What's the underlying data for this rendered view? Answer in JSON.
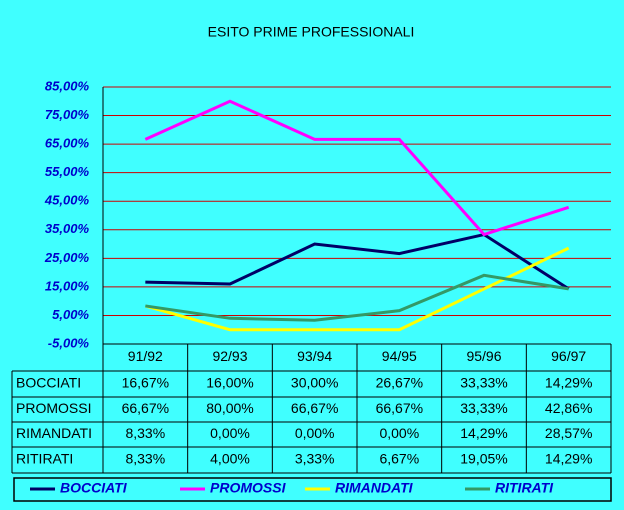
{
  "chart_data": {
    "type": "line",
    "title": "ESITO PRIME PROFESSIONALI",
    "categories": [
      "91/92",
      "92/93",
      "93/94",
      "94/95",
      "95/96",
      "96/97"
    ],
    "series": [
      {
        "name": "BOCCIATI",
        "color": "#000066",
        "values": [
          16.67,
          16,
          30,
          26.67,
          33.33,
          14.29
        ],
        "value_labels": [
          "16,67%",
          "16,00%",
          "30,00%",
          "26,67%",
          "33,33%",
          "14,29%"
        ]
      },
      {
        "name": "PROMOSSI",
        "color": "#ff00ff",
        "values": [
          66.67,
          80,
          66.67,
          66.67,
          33.33,
          42.86
        ],
        "value_labels": [
          "66,67%",
          "80,00%",
          "66,67%",
          "66,67%",
          "33,33%",
          "42,86%"
        ]
      },
      {
        "name": "RIMANDATI",
        "color": "#ffff00",
        "values": [
          8.33,
          0,
          0,
          0,
          14.29,
          28.57
        ],
        "value_labels": [
          "8,33%",
          "0,00%",
          "0,00%",
          "0,00%",
          "14,29%",
          "28,57%"
        ]
      },
      {
        "name": "RITIRATI",
        "color": "#339966",
        "values": [
          8.33,
          4,
          3.33,
          6.67,
          19.05,
          14.29
        ],
        "value_labels": [
          "8,33%",
          "4,00%",
          "3,33%",
          "6,67%",
          "19,05%",
          "14,29%"
        ]
      }
    ],
    "ylim": [
      -5,
      85
    ],
    "yticks": [
      {
        "value": -5,
        "label": "-5,00%"
      },
      {
        "value": 5,
        "label": "5,00%"
      },
      {
        "value": 15,
        "label": "15,00%"
      },
      {
        "value": 25,
        "label": "25,00%"
      },
      {
        "value": 35,
        "label": "35,00%"
      },
      {
        "value": 45,
        "label": "45,00%"
      },
      {
        "value": 55,
        "label": "55,00%"
      },
      {
        "value": 65,
        "label": "65,00%"
      },
      {
        "value": 75,
        "label": "75,00%"
      },
      {
        "value": 85,
        "label": "85,00%"
      }
    ],
    "grid": true,
    "grid_color": "#cc0000",
    "legend": "bottom"
  }
}
